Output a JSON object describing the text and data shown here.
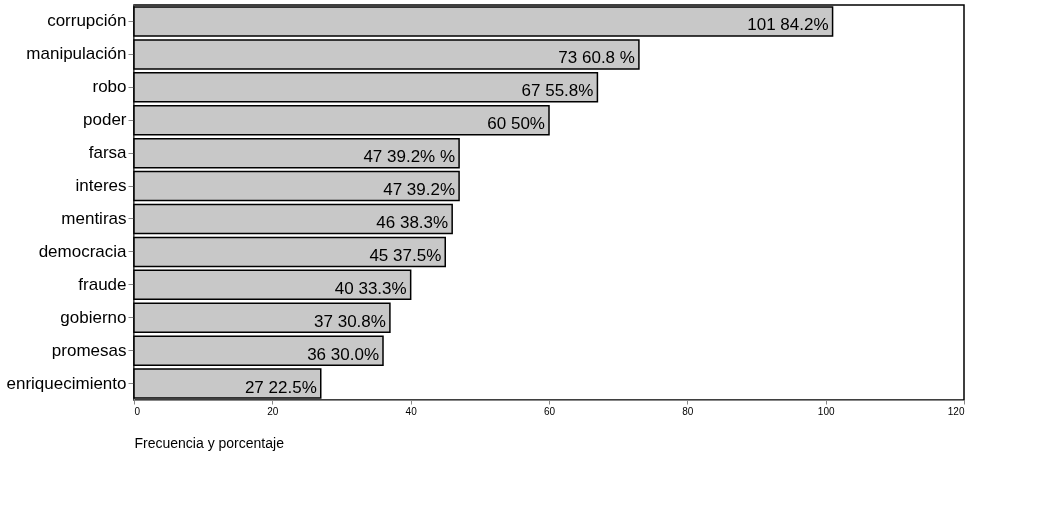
{
  "chart_data": {
    "type": "bar",
    "orientation": "horizontal",
    "xlabel": "Frecuencia y porcentaje",
    "categories": [
      "corrupción",
      "manipulación",
      "robo",
      "poder",
      "farsa",
      "interes",
      "mentiras",
      "democracia",
      "fraude",
      "gobierno",
      "promesas",
      "enriquecimiento"
    ],
    "values": [
      101,
      73,
      67,
      60,
      47,
      47,
      46,
      45,
      40,
      37,
      36,
      27
    ],
    "value_labels": [
      "101   84.2%",
      "73   60.8 %",
      "67   55.8%",
      "60   50%",
      "47   39.2% %",
      "47   39.2%",
      "46   38.3%",
      "45   37.5%",
      "40   33.3%",
      "37   30.8%",
      "36   30.0%",
      "27   22.5%"
    ],
    "color": "#c8c8c8",
    "xlim": [
      0,
      120
    ],
    "xticks": [
      0,
      20,
      40,
      60,
      80,
      100,
      120
    ],
    "grid": false
  }
}
